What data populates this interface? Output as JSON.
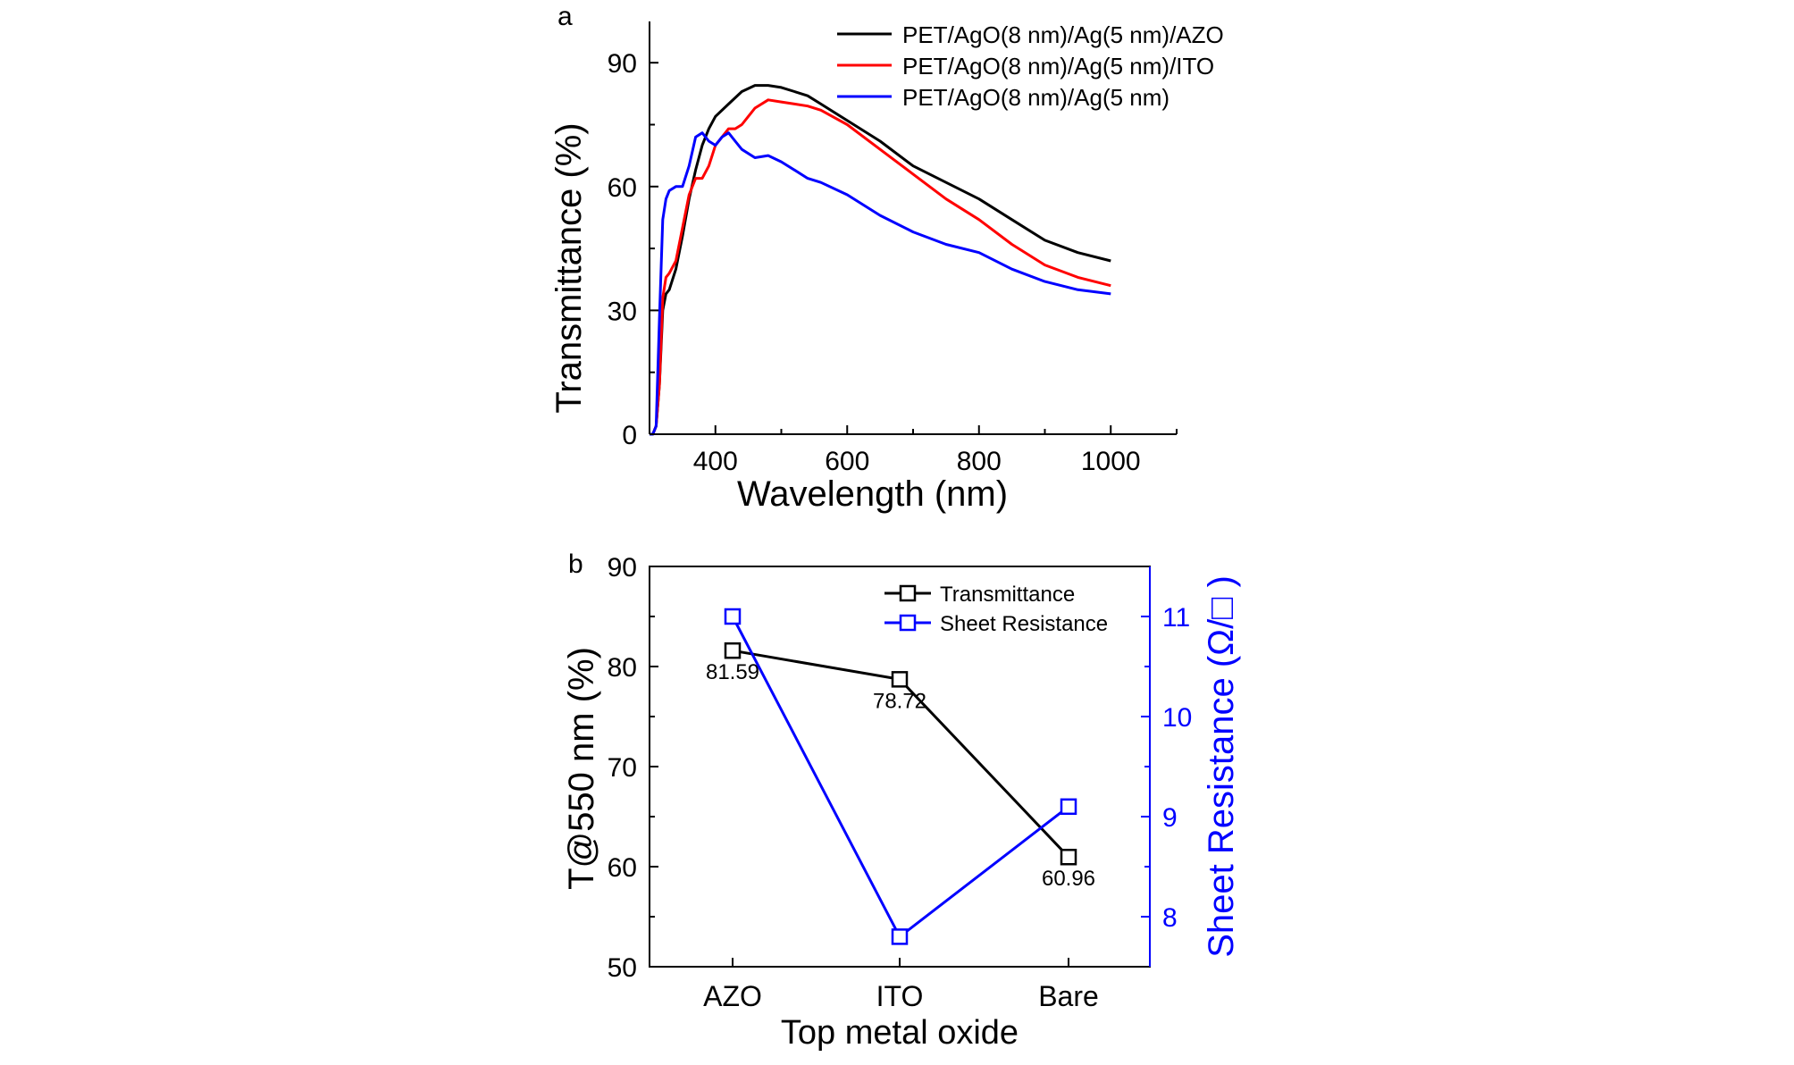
{
  "chart_data": [
    {
      "panel_label": "a",
      "type": "line",
      "xlabel": "Wavelength (nm)",
      "ylabel": "Transmittance (%)",
      "xlim": [
        300,
        1100
      ],
      "ylim": [
        0,
        100
      ],
      "xticks": [
        400,
        600,
        800,
        1000
      ],
      "yticks": [
        0,
        30,
        60,
        90
      ],
      "grid": false,
      "legend": "top-right",
      "colors": {
        "series_0": "#000000",
        "series_1": "#ff0000",
        "series_2": "#0000ff"
      },
      "series": [
        {
          "name": "PET/AgO(8 nm)/Ag(5 nm)/AZO",
          "x": [
            300,
            305,
            310,
            315,
            320,
            325,
            330,
            340,
            350,
            360,
            370,
            380,
            390,
            400,
            420,
            440,
            460,
            480,
            500,
            520,
            540,
            560,
            600,
            650,
            700,
            750,
            800,
            850,
            900,
            950,
            1000
          ],
          "y": [
            0,
            0,
            2,
            12,
            30,
            34,
            35,
            40,
            48,
            57,
            64,
            70,
            74,
            77,
            80,
            83,
            84.5,
            84.5,
            84,
            83,
            82,
            80,
            76,
            71,
            65,
            61,
            57,
            52,
            47,
            44,
            42
          ]
        },
        {
          "name": "PET/AgO(8 nm)/Ag(5 nm)/ITO",
          "x": [
            300,
            305,
            310,
            315,
            320,
            325,
            330,
            340,
            350,
            360,
            370,
            380,
            390,
            400,
            410,
            420,
            430,
            440,
            460,
            480,
            500,
            520,
            540,
            560,
            600,
            650,
            700,
            750,
            800,
            850,
            900,
            950,
            1000
          ],
          "y": [
            0,
            0,
            2,
            12,
            33,
            38,
            39,
            42,
            50,
            58,
            62,
            62,
            65,
            70,
            72,
            74,
            74,
            75,
            79,
            81,
            80.5,
            80,
            79.5,
            78.5,
            75,
            69,
            63,
            57,
            52,
            46,
            41,
            38,
            36
          ]
        },
        {
          "name": "PET/AgO(8 nm)/Ag(5 nm)",
          "x": [
            300,
            305,
            310,
            315,
            320,
            325,
            330,
            340,
            350,
            360,
            370,
            380,
            390,
            400,
            410,
            420,
            430,
            440,
            460,
            480,
            500,
            520,
            540,
            560,
            600,
            650,
            700,
            750,
            800,
            850,
            900,
            950,
            1000
          ],
          "y": [
            0,
            0,
            2,
            28,
            52,
            57,
            59,
            60,
            60,
            65,
            72,
            73,
            71,
            70,
            72,
            73,
            71,
            69,
            67,
            67.5,
            66,
            64,
            62,
            61,
            58,
            53,
            49,
            46,
            44,
            40,
            37,
            35,
            34
          ]
        }
      ]
    },
    {
      "panel_label": "b",
      "type": "line",
      "xlabel": "Top metal oxide",
      "ylabel": "T@550 nm (%)",
      "y2label": "Sheet Resistance (Ω/□ )",
      "categories": [
        "AZO",
        "ITO",
        "Bare"
      ],
      "ylim": [
        50,
        90
      ],
      "yticks": [
        50,
        60,
        70,
        80,
        90
      ],
      "y2lim": [
        7.5,
        11.5
      ],
      "y2ticks": [
        8,
        9,
        10,
        11
      ],
      "grid": false,
      "legend": "top-right",
      "colors": {
        "series_0": "#000000",
        "series_1": "#0000ff",
        "axis_right": "#0000ff"
      },
      "series": [
        {
          "name": "Transmittance",
          "axis": "left",
          "values": [
            81.59,
            78.72,
            60.96
          ],
          "labels": [
            "81.59",
            "78.72",
            "60.96"
          ]
        },
        {
          "name": "Sheet Resistance",
          "axis": "right",
          "values": [
            11.0,
            7.8,
            9.1
          ]
        }
      ]
    }
  ]
}
